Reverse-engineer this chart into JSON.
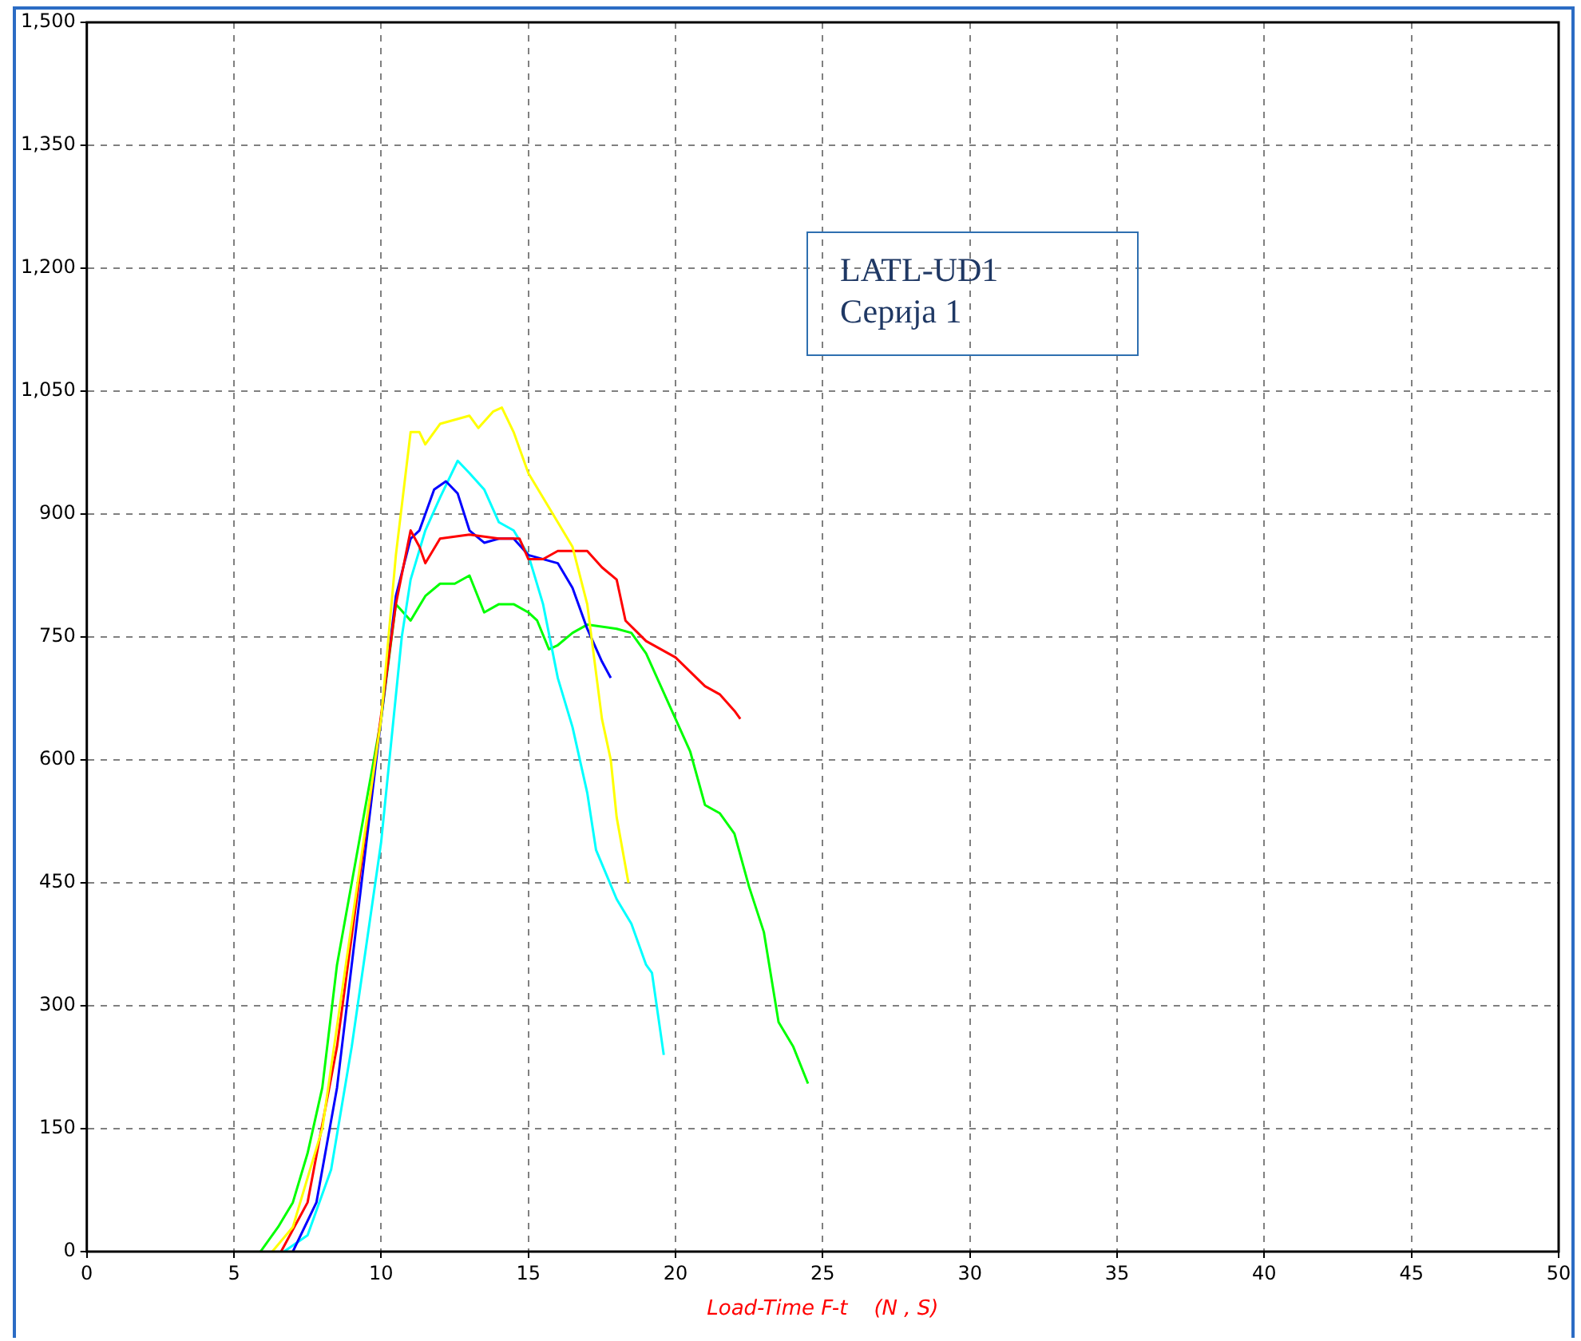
{
  "chart_data": {
    "type": "line",
    "xlabel": "Load-Time F-t    (N , S)",
    "annotations": [
      "LATL-UD1",
      "Серија 1"
    ],
    "xlim": [
      0,
      50
    ],
    "xticks": [
      0,
      5,
      10,
      15,
      20,
      25,
      30,
      35,
      40,
      45,
      50
    ],
    "ylim": [
      0,
      1500
    ],
    "yticks": [
      0,
      150,
      300,
      450,
      600,
      750,
      900,
      {
        "value": 1050,
        "label": "1,050"
      },
      {
        "value": 1200,
        "label": "1,200"
      },
      {
        "value": 1350,
        "label": "1,350"
      },
      {
        "value": 1500,
        "label": "1,500"
      }
    ],
    "grid": true,
    "legend": false,
    "marker": "none",
    "line_style": "solid",
    "series": [
      {
        "color": "#ffff00",
        "x": [
          6.3,
          7,
          8,
          9,
          10,
          10.5,
          11,
          11.3,
          11.5,
          12,
          13,
          13.3,
          13.8,
          14.1,
          14.5,
          15,
          15.5,
          16,
          16.5,
          17,
          17.5,
          17.8,
          18,
          18.4
        ],
        "values": [
          0,
          30,
          150,
          400,
          650,
          850,
          1000,
          1000,
          985,
          1010,
          1020,
          1005,
          1025,
          1030,
          1000,
          950,
          920,
          890,
          860,
          790,
          650,
          600,
          530,
          450
        ]
      },
      {
        "color": "#ff0000",
        "x": [
          6.6,
          7.5,
          8.5,
          9.5,
          10.5,
          11,
          11.3,
          11.5,
          12,
          13,
          14,
          14.7,
          15,
          15.5,
          16,
          17,
          17.5,
          18,
          18.3,
          19,
          20,
          21,
          21.5,
          22,
          22.2
        ],
        "values": [
          0,
          60,
          250,
          520,
          790,
          880,
          860,
          840,
          870,
          875,
          870,
          870,
          845,
          845,
          855,
          855,
          835,
          820,
          770,
          745,
          725,
          690,
          680,
          660,
          650
        ]
      },
      {
        "color": "#0000ff",
        "x": [
          7,
          7.8,
          8.5,
          9.5,
          10.5,
          11,
          11.3,
          11.8,
          12.2,
          12.6,
          13,
          13.5,
          14,
          14.5,
          15,
          16,
          16.5,
          17,
          17.5,
          17.8
        ],
        "values": [
          0,
          60,
          200,
          500,
          800,
          870,
          880,
          930,
          940,
          925,
          880,
          865,
          870,
          870,
          850,
          840,
          810,
          760,
          720,
          700
        ]
      },
      {
        "color": "#00ffff",
        "x": [
          6.7,
          7.5,
          8.3,
          9,
          10,
          10.7,
          11,
          11.5,
          12,
          12.6,
          13,
          13.5,
          14,
          14.5,
          15,
          15.5,
          16,
          16.5,
          17,
          17.3,
          18,
          18.5,
          19,
          19.2,
          19.6
        ],
        "values": [
          0,
          20,
          100,
          250,
          500,
          750,
          820,
          880,
          920,
          965,
          950,
          930,
          890,
          880,
          850,
          790,
          700,
          640,
          560,
          490,
          430,
          400,
          350,
          340,
          240
        ]
      },
      {
        "color": "#00ff00",
        "x": [
          5.9,
          6.5,
          7,
          7.5,
          8,
          8.5,
          9,
          10,
          10.5,
          11,
          11.5,
          12,
          12.5,
          13,
          13.5,
          14,
          14.5,
          15,
          15.3,
          15.7,
          16,
          16.5,
          17,
          18,
          18.5,
          19,
          19.5,
          20,
          20.5,
          21,
          21.5,
          22,
          22.5,
          23,
          23.5,
          24,
          24.5
        ],
        "values": [
          0,
          30,
          60,
          120,
          200,
          350,
          450,
          650,
          790,
          770,
          800,
          815,
          815,
          825,
          780,
          790,
          790,
          780,
          770,
          735,
          740,
          755,
          765,
          760,
          755,
          730,
          690,
          650,
          610,
          545,
          535,
          510,
          445,
          390,
          280,
          250,
          205
        ]
      }
    ]
  }
}
